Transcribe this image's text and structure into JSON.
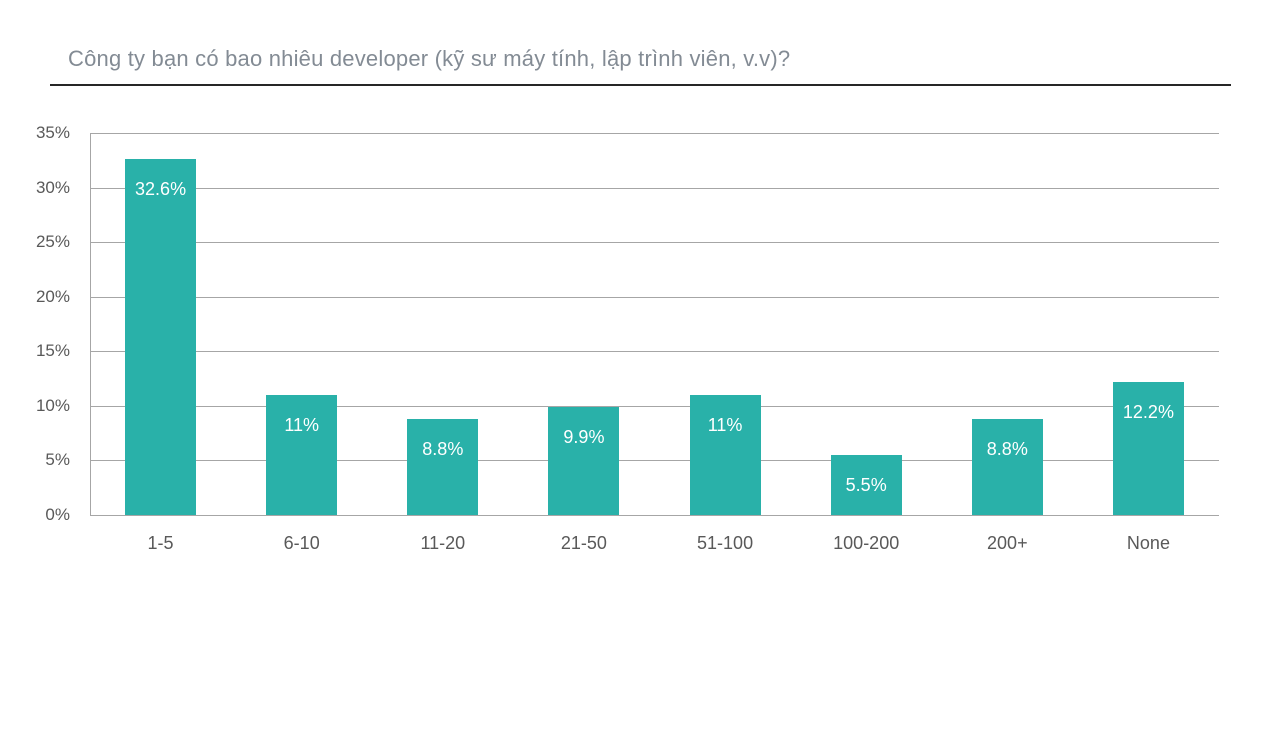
{
  "chart_data": {
    "type": "bar",
    "title": "Công ty bạn có bao nhiêu developer (kỹ sư máy tính, lập trình viên, v.v)?",
    "categories": [
      "1-5",
      "6-10",
      "11-20",
      "21-50",
      "51-100",
      "100-200",
      "200+",
      "None"
    ],
    "values": [
      32.6,
      11,
      8.8,
      9.9,
      11,
      5.5,
      8.8,
      12.2
    ],
    "value_labels": [
      "32.6%",
      "11%",
      "8.8%",
      "9.9%",
      "11%",
      "5.5%",
      "8.8%",
      "12.2%"
    ],
    "y_ticks": [
      "35%",
      "30%",
      "25%",
      "20%",
      "15%",
      "10%",
      "5%",
      "0%"
    ],
    "ylim": [
      0,
      35
    ],
    "xlabel": "",
    "ylabel": "",
    "grid": true,
    "legend": "none",
    "bar_color": "#29b1a9",
    "value_label_color": "#ffffff",
    "axis_text_color": "#595959",
    "grid_color": "#a6a6a6",
    "title_color": "#838b94",
    "rule_color": "#262626",
    "background_color": "#ffffff"
  }
}
